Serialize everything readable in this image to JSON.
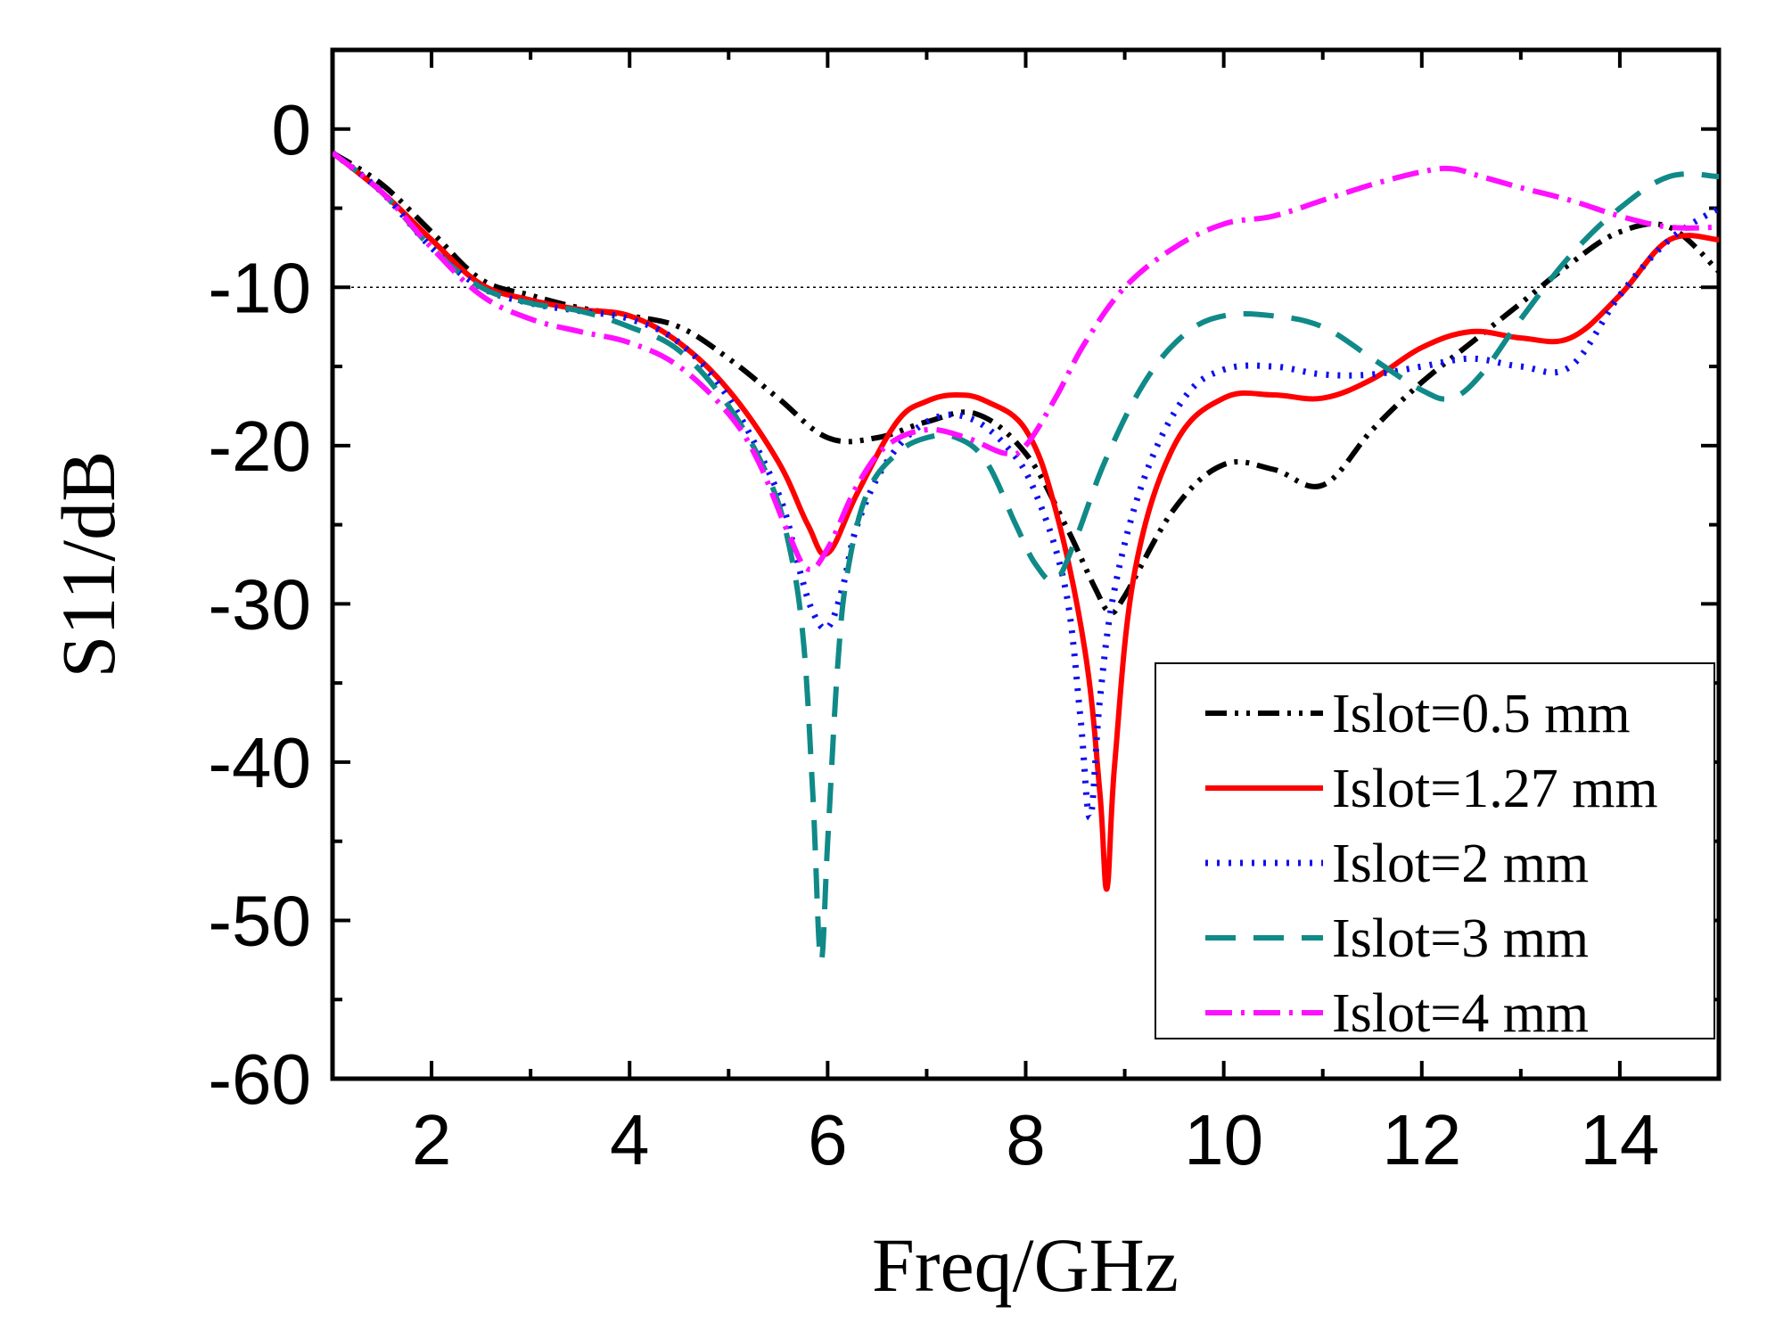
{
  "chart_data": {
    "type": "line",
    "title": "",
    "xlabel": "Freq/GHz",
    "ylabel": "S11/dB",
    "xlim": [
      1,
      15
    ],
    "ylim": [
      -60,
      5
    ],
    "xticks": [
      2,
      4,
      6,
      8,
      10,
      12,
      14
    ],
    "xtick_labels": [
      "2",
      "4",
      "6",
      "8",
      "10",
      "12",
      "14"
    ],
    "yticks": [
      0,
      -10,
      -20,
      -30,
      -40,
      -50,
      -60
    ],
    "ytick_labels": [
      "0",
      "-10",
      "-20",
      "-30",
      "-40",
      "-50",
      "-60"
    ],
    "reference_line": {
      "y": -10,
      "style": "dotted"
    },
    "grid": false,
    "legend_position": "bottom-right",
    "series": [
      {
        "name": "Islot=0.5 mm",
        "color": "#000000",
        "dash": "dash-dot-dot",
        "x": [
          1.0,
          1.5,
          2.0,
          2.5,
          3.0,
          3.5,
          4.0,
          4.5,
          5.0,
          5.5,
          6.0,
          6.5,
          7.0,
          7.5,
          8.0,
          8.4,
          8.7,
          8.85,
          9.0,
          9.5,
          10.0,
          10.5,
          11.0,
          11.5,
          12.0,
          12.5,
          13.0,
          13.5,
          14.0,
          14.5,
          15.0
        ],
        "y": [
          -1.5,
          -3.5,
          -6.5,
          -9.5,
          -10.5,
          -11.3,
          -11.8,
          -12.5,
          -14.5,
          -17.0,
          -19.5,
          -19.5,
          -18.5,
          -18.0,
          -20.5,
          -25.0,
          -29.0,
          -30.5,
          -29.5,
          -24.0,
          -21.2,
          -21.5,
          -22.5,
          -19.0,
          -16.0,
          -13.5,
          -11.0,
          -8.5,
          -6.5,
          -6.2,
          -9.0
        ]
      },
      {
        "name": "Islot=1.27 mm",
        "color": "#ff0000",
        "dash": "solid",
        "x": [
          1.0,
          1.5,
          2.0,
          2.5,
          3.0,
          3.5,
          4.0,
          4.5,
          5.0,
          5.5,
          5.8,
          6.0,
          6.3,
          6.7,
          7.0,
          7.3,
          7.6,
          8.0,
          8.3,
          8.6,
          8.75,
          8.82,
          8.9,
          9.1,
          9.5,
          10.0,
          10.5,
          11.0,
          11.5,
          12.0,
          12.5,
          13.0,
          13.5,
          14.0,
          14.5,
          15.0
        ],
        "y": [
          -1.5,
          -4.0,
          -7.0,
          -9.8,
          -10.8,
          -11.4,
          -11.8,
          -13.5,
          -16.5,
          -21.0,
          -25.0,
          -26.8,
          -23.0,
          -18.5,
          -17.2,
          -16.8,
          -17.2,
          -19.0,
          -24.0,
          -33.0,
          -42.0,
          -48.0,
          -40.0,
          -28.0,
          -20.0,
          -17.0,
          -16.8,
          -17.0,
          -15.8,
          -13.8,
          -12.8,
          -13.2,
          -13.2,
          -10.5,
          -7.0,
          -7.0
        ]
      },
      {
        "name": "Islot=2 mm",
        "color": "#1010ee",
        "dash": "dotted",
        "x": [
          1.0,
          1.5,
          2.0,
          2.5,
          3.0,
          3.5,
          4.0,
          4.5,
          5.0,
          5.5,
          5.7,
          5.85,
          6.0,
          6.15,
          6.3,
          6.6,
          7.0,
          7.4,
          7.8,
          8.1,
          8.4,
          8.55,
          8.65,
          8.75,
          8.9,
          9.2,
          9.6,
          10.0,
          10.5,
          11.0,
          11.5,
          12.0,
          12.5,
          13.0,
          13.5,
          14.0,
          14.5,
          15.0
        ],
        "y": [
          -1.5,
          -4.0,
          -7.5,
          -10.0,
          -11.0,
          -11.5,
          -12.0,
          -13.5,
          -17.0,
          -23.0,
          -27.5,
          -30.5,
          -31.5,
          -29.0,
          -25.0,
          -21.0,
          -18.5,
          -18.2,
          -20.0,
          -23.0,
          -29.0,
          -37.0,
          -43.5,
          -36.0,
          -29.0,
          -22.0,
          -17.0,
          -15.2,
          -15.0,
          -15.5,
          -15.5,
          -15.0,
          -14.5,
          -15.0,
          -15.0,
          -10.5,
          -7.0,
          -5.0
        ]
      },
      {
        "name": "Islot=3 mm",
        "color": "#108a88",
        "dash": "dashed",
        "x": [
          1.0,
          1.5,
          2.0,
          2.5,
          3.0,
          3.5,
          4.0,
          4.5,
          5.0,
          5.4,
          5.6,
          5.75,
          5.85,
          5.93,
          6.0,
          6.1,
          6.2,
          6.4,
          6.7,
          7.0,
          7.3,
          7.6,
          7.9,
          8.1,
          8.3,
          8.5,
          8.8,
          9.2,
          9.6,
          10.0,
          10.5,
          11.0,
          11.5,
          12.0,
          12.3,
          12.6,
          13.0,
          13.5,
          14.0,
          14.5,
          15.0
        ],
        "y": [
          -1.5,
          -4.0,
          -7.5,
          -10.0,
          -11.0,
          -11.5,
          -12.5,
          -14.0,
          -17.5,
          -22.0,
          -26.0,
          -32.0,
          -42.0,
          -52.5,
          -45.0,
          -34.0,
          -28.0,
          -23.0,
          -20.5,
          -19.5,
          -19.5,
          -21.0,
          -25.0,
          -27.5,
          -28.5,
          -26.0,
          -21.0,
          -16.0,
          -13.0,
          -11.8,
          -11.8,
          -12.5,
          -14.5,
          -16.5,
          -17.0,
          -15.5,
          -12.0,
          -8.0,
          -5.0,
          -3.0,
          -3.0
        ]
      },
      {
        "name": "Islot=4 mm",
        "color": "#ff10ff",
        "dash": "dash-dot",
        "x": [
          1.0,
          1.5,
          2.0,
          2.5,
          3.0,
          3.5,
          4.0,
          4.5,
          5.0,
          5.3,
          5.6,
          5.8,
          6.0,
          6.3,
          6.6,
          7.0,
          7.4,
          7.8,
          8.0,
          8.3,
          8.6,
          9.0,
          9.5,
          10.0,
          10.5,
          11.0,
          11.5,
          12.0,
          12.3,
          12.6,
          13.0,
          13.5,
          14.0,
          14.5,
          15.0
        ],
        "y": [
          -1.5,
          -4.0,
          -7.5,
          -10.5,
          -12.0,
          -12.8,
          -13.5,
          -15.0,
          -18.0,
          -21.0,
          -25.5,
          -27.8,
          -26.5,
          -22.5,
          -20.0,
          -19.0,
          -19.5,
          -20.5,
          -20.0,
          -17.0,
          -13.5,
          -10.0,
          -7.5,
          -6.0,
          -5.5,
          -4.5,
          -3.5,
          -2.7,
          -2.5,
          -3.0,
          -3.7,
          -4.5,
          -5.5,
          -6.2,
          -6.2
        ]
      }
    ]
  }
}
